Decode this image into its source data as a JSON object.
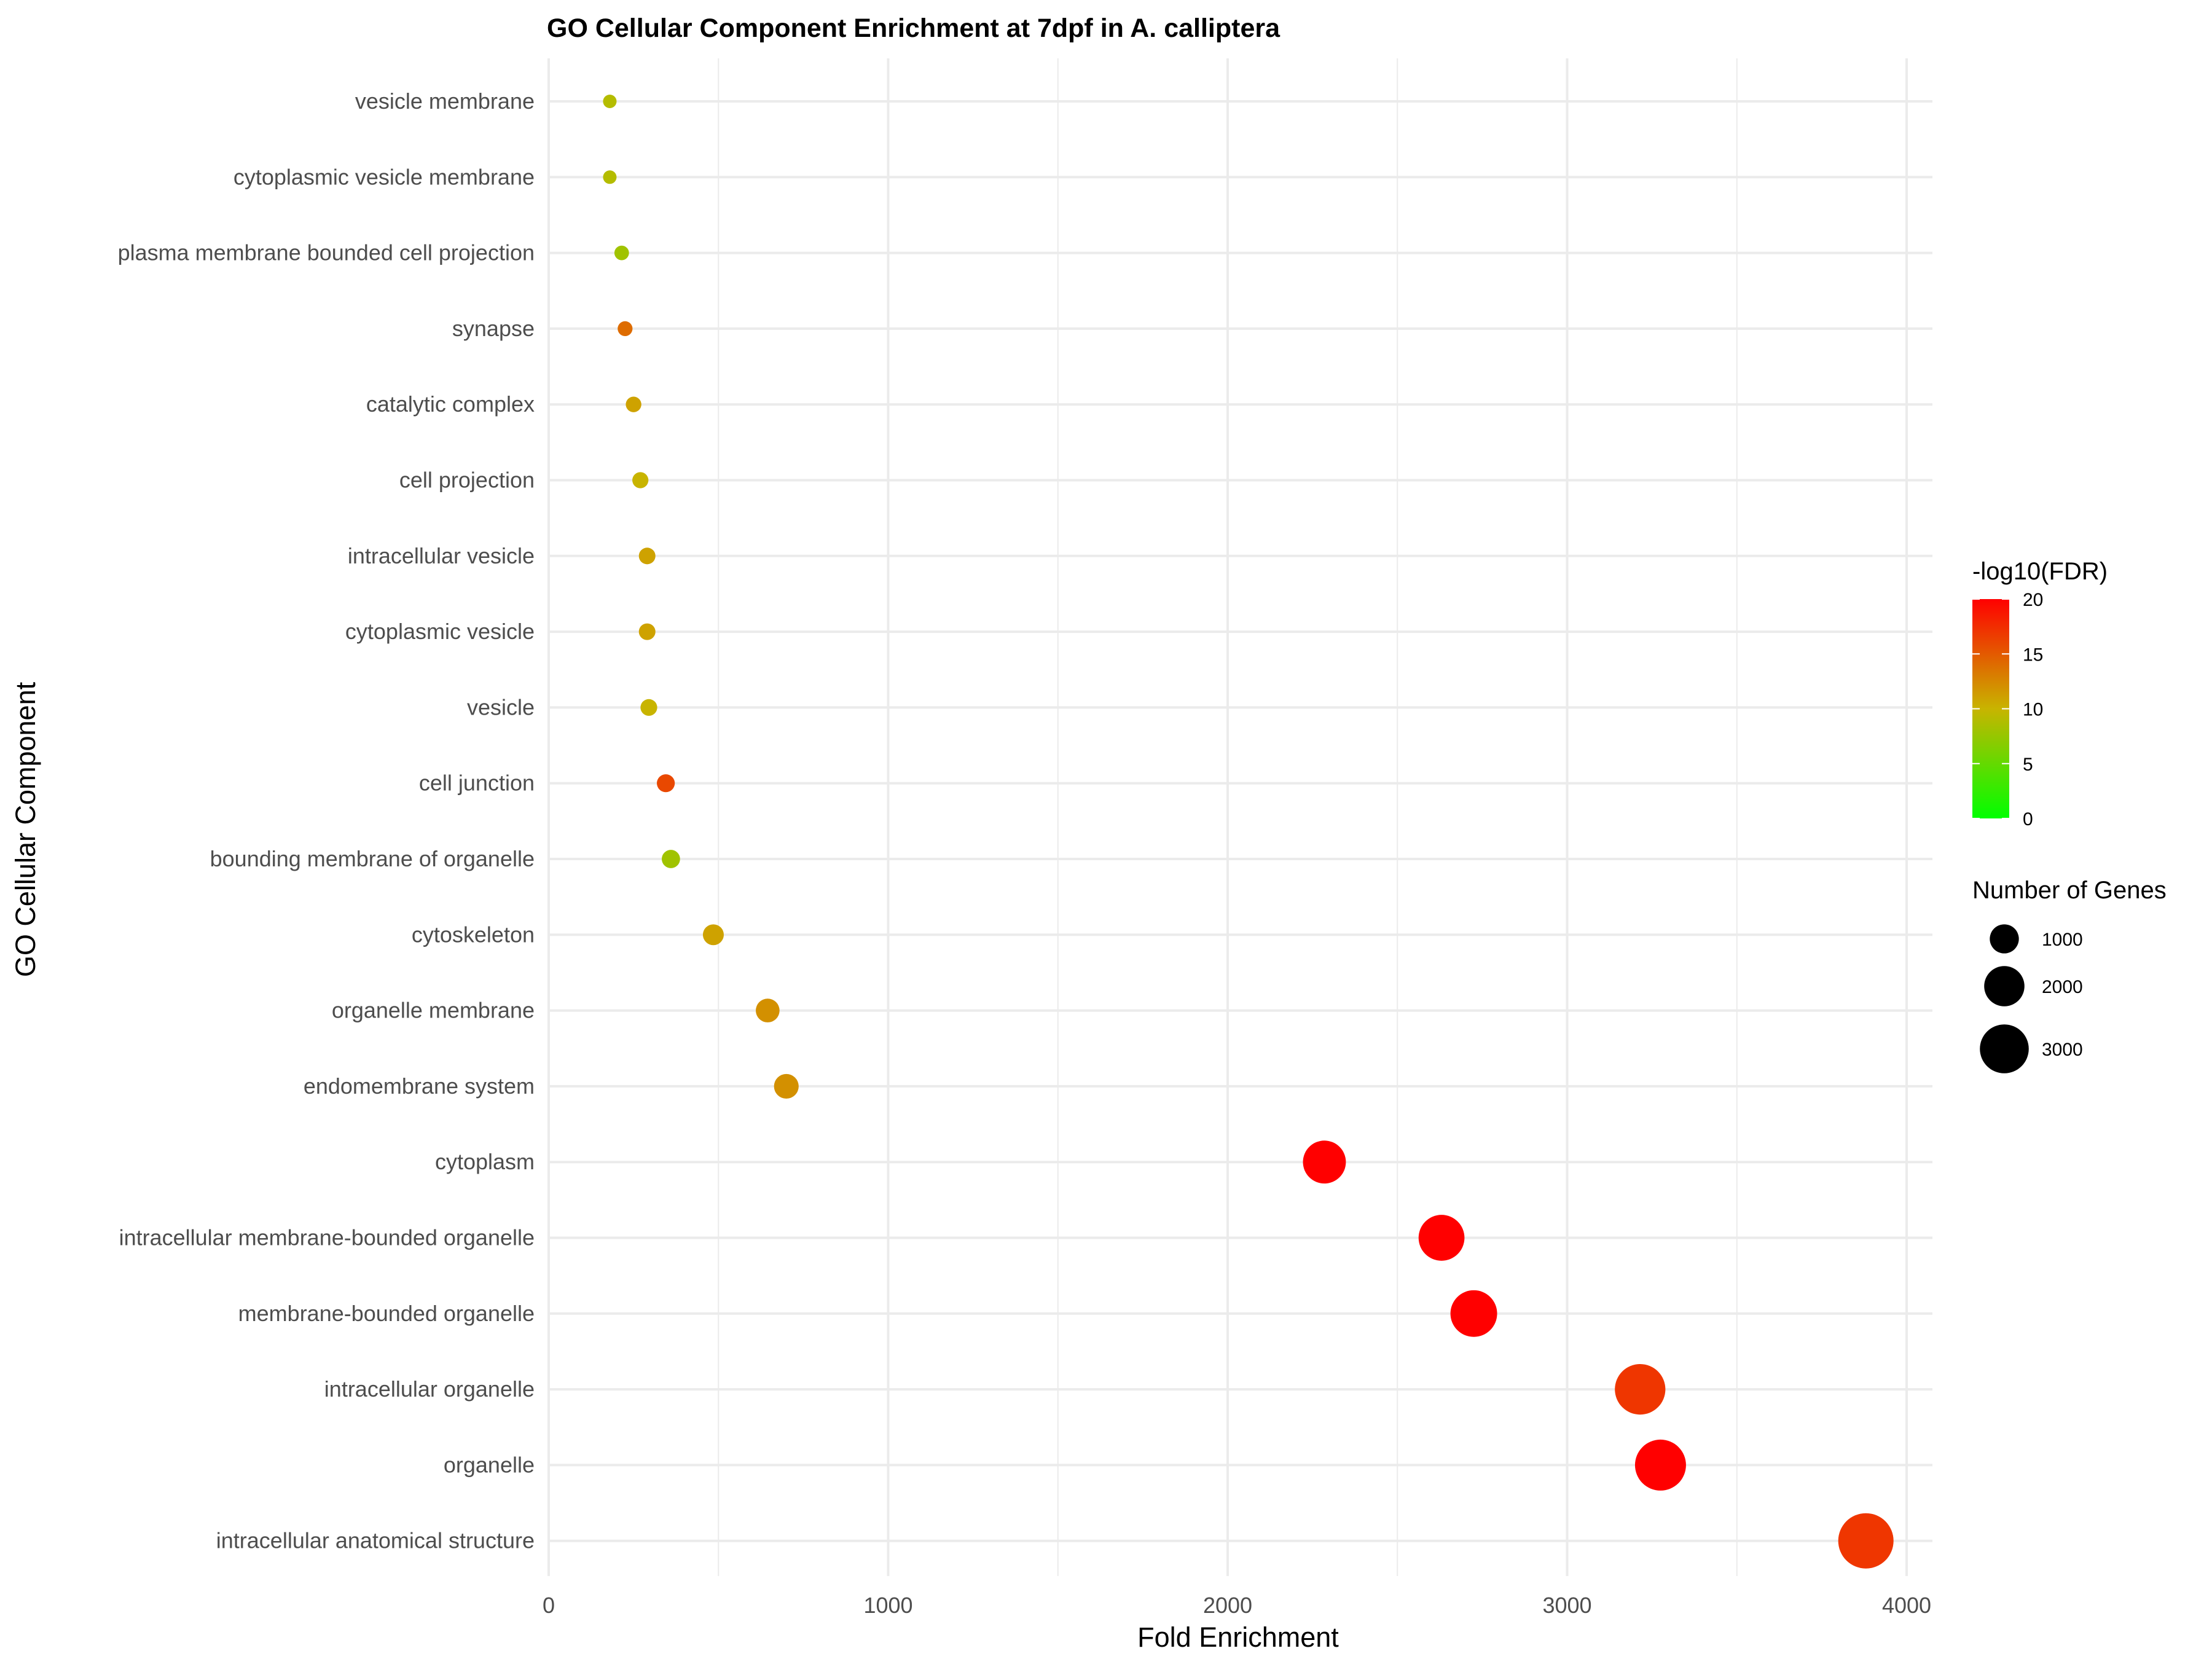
{
  "chart_data": {
    "type": "scatter",
    "title": "GO Cellular Component Enrichment at 7dpf in A. calliptera",
    "xlabel": "Fold Enrichment",
    "ylabel": "GO Cellular Component",
    "xlim": [
      0,
      4100
    ],
    "x_ticks": [
      0,
      1000,
      2000,
      3000,
      4000
    ],
    "x_tick_labels": [
      "0",
      "1000",
      "2000",
      "3000",
      "4000"
    ],
    "grid": true,
    "categories": [
      "vesicle membrane",
      "cytoplasmic vesicle membrane",
      "plasma membrane bounded cell projection",
      "synapse",
      "catalytic complex",
      "cell projection",
      "intracellular vesicle",
      "cytoplasmic vesicle",
      "vesicle",
      "cell junction",
      "bounding membrane of organelle",
      "cytoskeleton",
      "organelle membrane",
      "endomembrane system",
      "cytoplasm",
      "intracellular membrane-bounded organelle",
      "membrane-bounded organelle",
      "intracellular organelle",
      "organelle",
      "intracellular anatomical structure"
    ],
    "fold_enrichment": [
      180,
      180,
      215,
      225,
      250,
      270,
      290,
      290,
      295,
      345,
      360,
      485,
      645,
      700,
      2285,
      2630,
      2725,
      3215,
      3275,
      3880
    ],
    "neg_log10_fdr": [
      9,
      9,
      8,
      14,
      11,
      10,
      11,
      11,
      10,
      16,
      8,
      11,
      12,
      12,
      20,
      20,
      20,
      17,
      20,
      17
    ],
    "gene_count": [
      180,
      180,
      215,
      225,
      250,
      270,
      290,
      290,
      295,
      345,
      360,
      485,
      645,
      700,
      2285,
      2630,
      2725,
      3215,
      3275,
      3880
    ],
    "legend": {
      "color": {
        "title": "-log10(FDR)",
        "min": 0,
        "max": 20,
        "low_color": "#00ff00",
        "mid_color": "#c8b400",
        "high_color": "#ff0000",
        "ticks": [
          "0",
          "5",
          "10",
          "15",
          "20"
        ],
        "placement": "right"
      },
      "size": {
        "title": "Number of Genes",
        "values": [
          1000,
          2000,
          3000
        ],
        "labels": [
          "1000",
          "2000",
          "3000"
        ],
        "placement": "right"
      }
    }
  }
}
